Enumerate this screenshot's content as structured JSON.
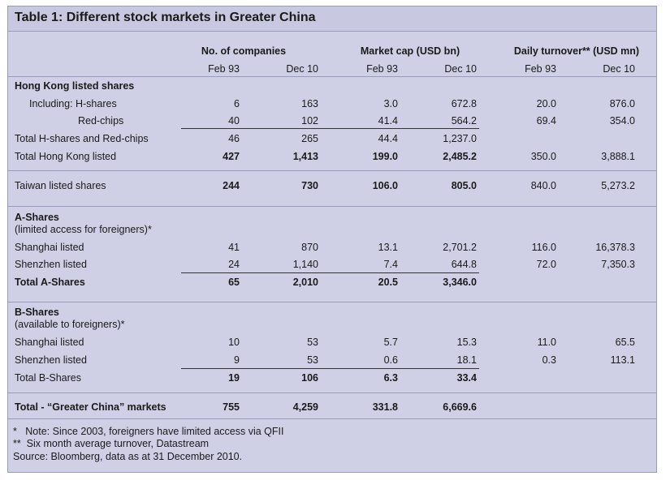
{
  "title": "Table 1: Different stock markets in Greater China",
  "headers": {
    "group1": "No. of companies",
    "group2": "Market cap (USD bn)",
    "group3": "Daily turnover** (USD mn)",
    "sub": [
      "Feb 93",
      "Dec 10",
      "Feb 93",
      "Dec 10",
      "Feb 93",
      "Dec 10"
    ]
  },
  "rows": [
    {
      "label": "Hong Kong listed shares",
      "bold": true,
      "values": [
        "",
        "",
        "",
        "",
        "",
        ""
      ]
    },
    {
      "label": "Including: H-shares",
      "values": [
        "6",
        "163",
        "3.0",
        "672.8",
        "20.0",
        "876.0"
      ]
    },
    {
      "label": "Red-chips",
      "values": [
        "40",
        "102",
        "41.4",
        "564.2",
        "69.4",
        "354.0"
      ]
    },
    {
      "label": "Total H-shares and Red-chips",
      "values": [
        "46",
        "265",
        "44.4",
        "1,237.0",
        "",
        ""
      ]
    },
    {
      "label": "Total Hong Kong listed",
      "values": [
        "427",
        "1,413",
        "199.0",
        "2,485.2",
        "350.0",
        "3,888.1"
      ]
    },
    {
      "label": "Taiwan listed shares",
      "values": [
        "244",
        "730",
        "106.0",
        "805.0",
        "840.0",
        "5,273.2"
      ]
    },
    {
      "label": "A-Shares",
      "bold": true,
      "values": [
        "",
        "",
        "",
        "",
        "",
        ""
      ]
    },
    {
      "label": "(limited access for foreigners)*",
      "values": [
        "",
        "",
        "",
        "",
        "",
        ""
      ]
    },
    {
      "label": "Shanghai listed",
      "values": [
        "41",
        "870",
        "13.1",
        "2,701.2",
        "116.0",
        "16,378.3"
      ]
    },
    {
      "label": "Shenzhen listed",
      "values": [
        "24",
        "1,140",
        "7.4",
        "644.8",
        "72.0",
        "7,350.3"
      ]
    },
    {
      "label": "Total A-Shares",
      "bold": true,
      "values": [
        "65",
        "2,010",
        "20.5",
        "3,346.0",
        "",
        ""
      ]
    },
    {
      "label": "B-Shares",
      "bold": true,
      "values": [
        "",
        "",
        "",
        "",
        "",
        ""
      ]
    },
    {
      "label": "(available to foreigners)*",
      "values": [
        "",
        "",
        "",
        "",
        "",
        ""
      ]
    },
    {
      "label": "Shanghai listed",
      "values": [
        "10",
        "53",
        "5.7",
        "15.3",
        "11.0",
        "65.5"
      ]
    },
    {
      "label": "Shenzhen listed",
      "values": [
        "9",
        "53",
        "0.6",
        "18.1",
        "0.3",
        "113.1"
      ]
    },
    {
      "label": "Total B-Shares",
      "values": [
        "19",
        "106",
        "6.3",
        "33.4",
        "",
        ""
      ]
    },
    {
      "label": "Total - “Greater China” markets",
      "bold": true,
      "values": [
        "755",
        "4,259",
        "331.8",
        "6,669.6",
        "",
        ""
      ]
    }
  ],
  "notes": [
    "*   Note: Since 2003, foreigners have limited access via QFII",
    "**  Six month average turnover, Datastream",
    "Source: Bloomberg, data as at 31 December 2010."
  ]
}
